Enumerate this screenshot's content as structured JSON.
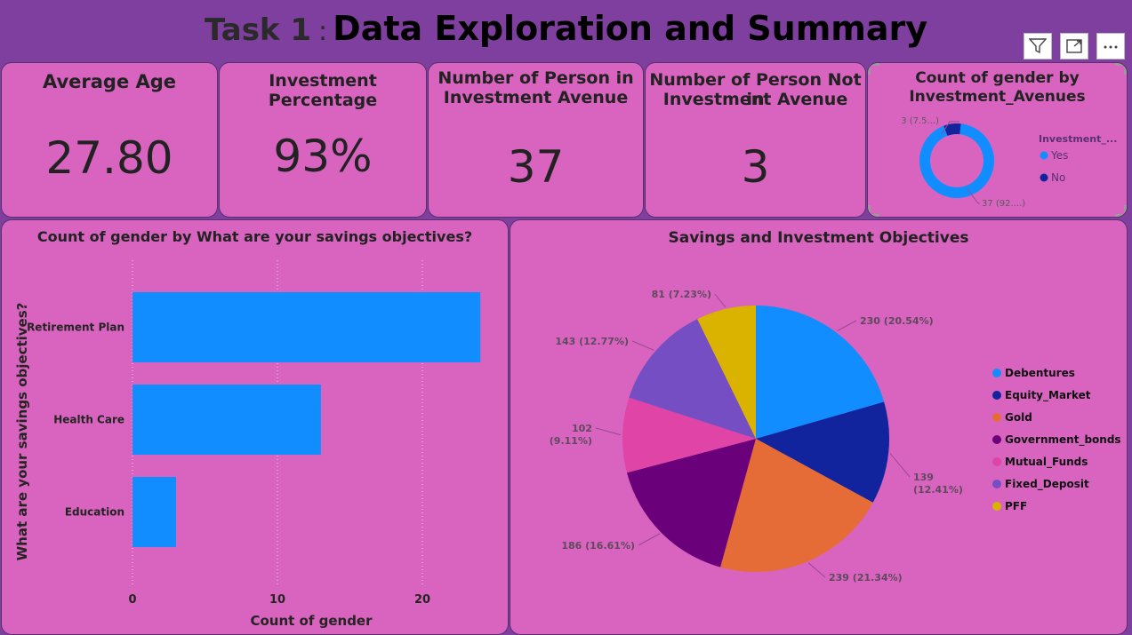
{
  "header": {
    "title_prefix": "Task 1",
    "title_separator": ":",
    "title_main": "Data Exploration and Summary"
  },
  "toolbar": {
    "filter_icon": "filter-icon",
    "focus_icon": "focus-mode-icon",
    "more_icon": "more-options-icon"
  },
  "kpis": [
    {
      "label": "Average Age",
      "value": "27.80"
    },
    {
      "label": "Investment Percentage",
      "value": "93%"
    },
    {
      "label_line1": "Number of Person in",
      "label_line2": "Investment Avenue",
      "value": "37"
    },
    {
      "label_line1": "Number of Person Not in",
      "label_line2": "Investment Avenue",
      "value": "3"
    }
  ],
  "donut": {
    "title_line1": "Count of gender by",
    "title_line2": "Investment_Avenues",
    "legend_title": "Investment_...",
    "label_no": "3 (7.5...)",
    "label_yes": "37 (92....)"
  },
  "bar": {
    "title": "Count of gender by What are your savings objectives?"
  },
  "pie": {
    "title": "Savings and Investment Objectives"
  },
  "colors": {
    "background": "#7f3f9e",
    "card": "#d864c0",
    "bar": "#118dff",
    "donut_yes": "#118dff",
    "donut_no": "#12239e"
  },
  "chart_data": [
    {
      "type": "pie",
      "variant": "donut",
      "title": "Count of gender by Investment_Avenues",
      "legend_title": "Investment_...",
      "slices": [
        {
          "name": "Yes",
          "value": 37,
          "label": "37 (92....)",
          "color": "#118dff"
        },
        {
          "name": "No",
          "value": 3,
          "label": "3 (7.5...)",
          "color": "#12239e"
        }
      ],
      "legend": "right"
    },
    {
      "type": "bar",
      "orientation": "horizontal",
      "title": "Count of gender by What are your savings objectives?",
      "categories": [
        "Retirement Plan",
        "Health Care",
        "Education"
      ],
      "values": [
        24,
        13,
        3
      ],
      "xlabel": "Count of gender",
      "ylabel": "What are your savings objectives?",
      "xlim": [
        0,
        25
      ],
      "xticks": [
        "0",
        "10",
        "20"
      ],
      "xtick_values": [
        0,
        10,
        20
      ],
      "grid": true,
      "color": "#118dff"
    },
    {
      "type": "pie",
      "title": "Savings and Investment Objectives",
      "legend": "right",
      "slices": [
        {
          "name": "Debentures",
          "value": 230,
          "label": "230 (20.54%)",
          "color": "#118dff"
        },
        {
          "name": "Equity_Market",
          "value": 139,
          "label": "139 (12.41%)",
          "color": "#12239e"
        },
        {
          "name": "Gold",
          "value": 239,
          "label": "239 (21.34%)",
          "color": "#e66c37"
        },
        {
          "name": "Government_bonds",
          "value": 186,
          "label": "186 (16.61%)",
          "color": "#6b007b"
        },
        {
          "name": "Mutual_Funds",
          "value": 102,
          "label": "102 (9.11%)",
          "color": "#e044a7"
        },
        {
          "name": "Fixed_Deposit",
          "value": 143,
          "label": "143 (12.77%)",
          "color": "#744ec2"
        },
        {
          "name": "PFF",
          "value": 81,
          "label": "81 (7.23%)",
          "color": "#d9b300"
        }
      ]
    }
  ]
}
